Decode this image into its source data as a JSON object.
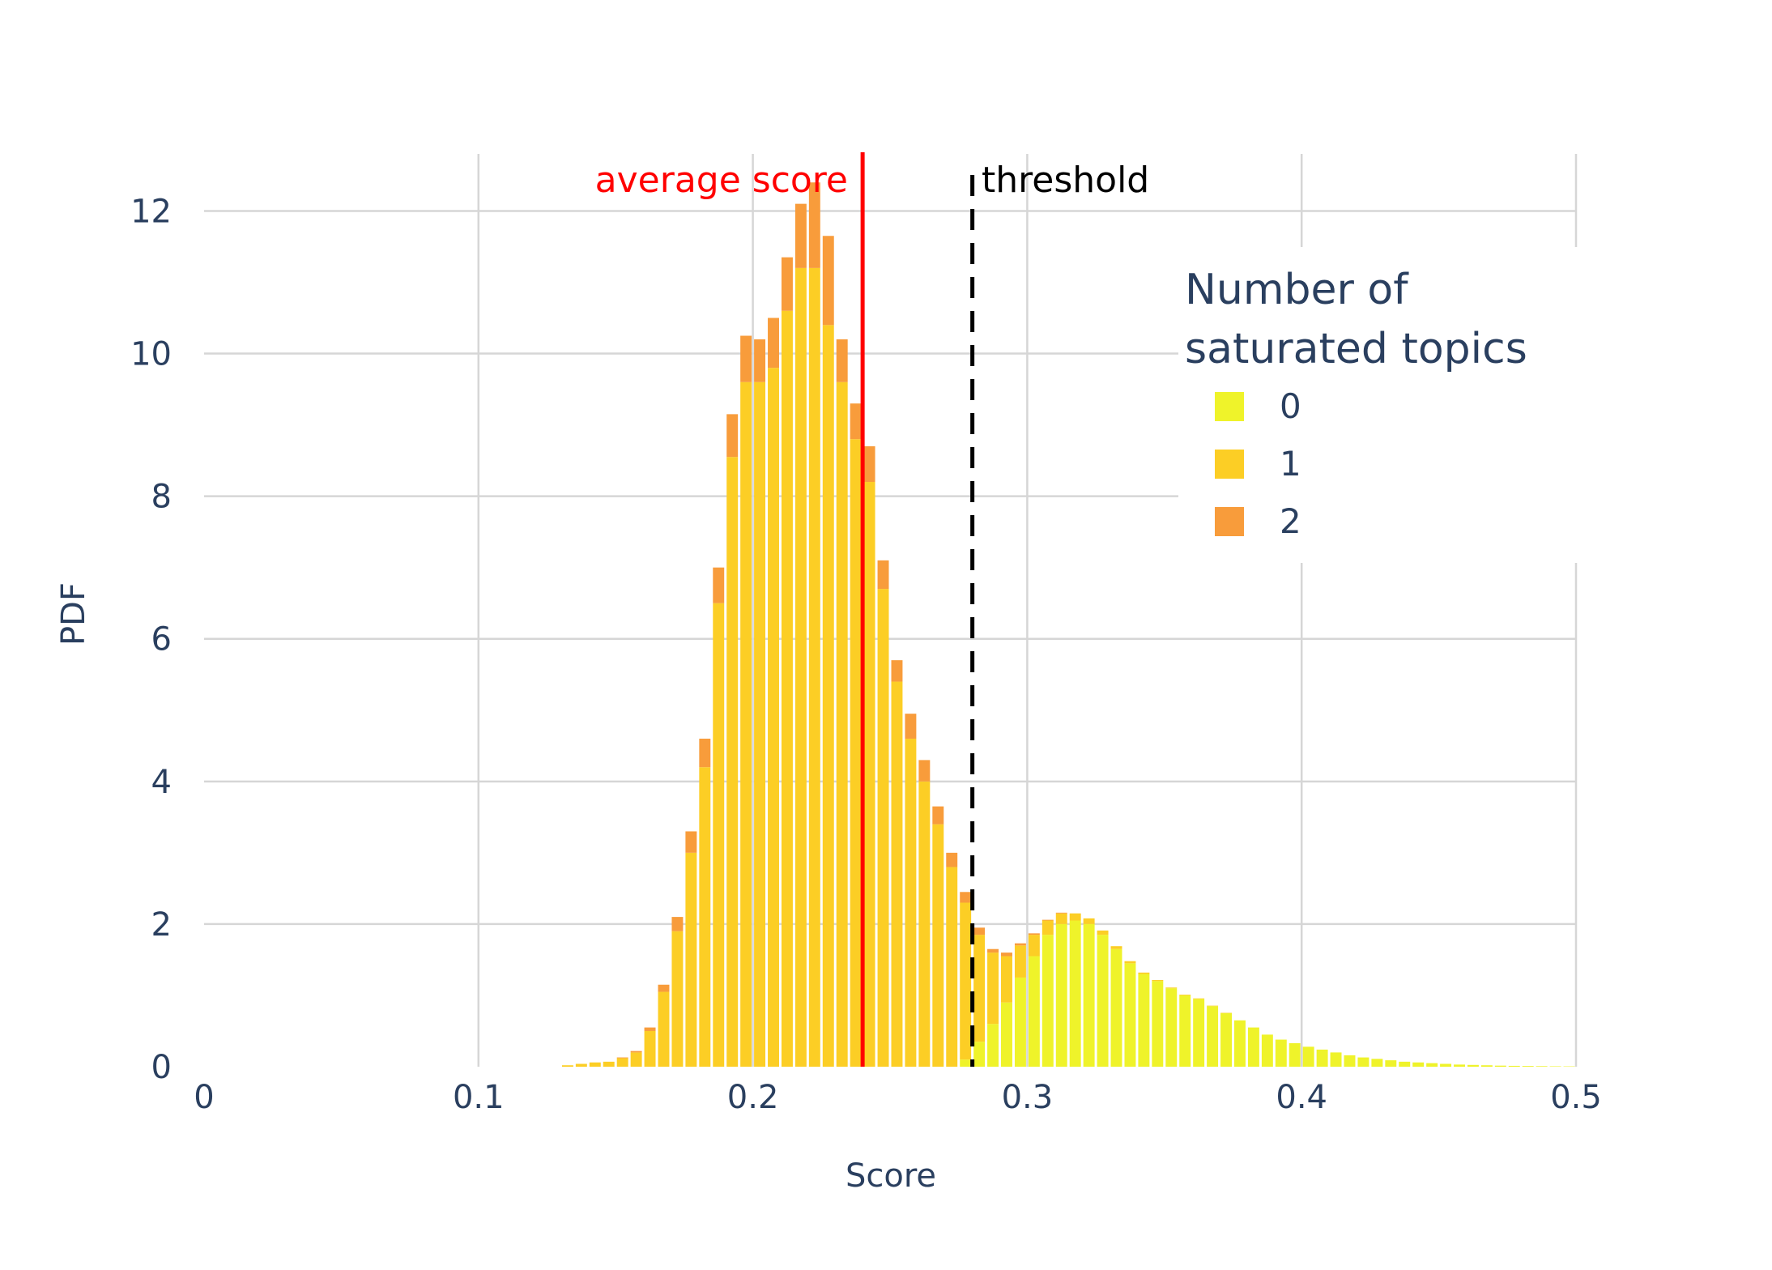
{
  "chart_data": {
    "type": "bar",
    "barmode": "stack",
    "xlabel": "Score",
    "ylabel": "PDF",
    "xlim": [
      0,
      0.5
    ],
    "ylim": [
      0,
      12.8
    ],
    "x_ticks": [
      "0",
      "0.1",
      "0.2",
      "0.3",
      "0.4",
      "0.5"
    ],
    "y_ticks": [
      "0",
      "2",
      "4",
      "6",
      "8",
      "10",
      "12"
    ],
    "grid": true,
    "bin_width": 0.005,
    "x": [
      0.1325,
      0.1375,
      0.1425,
      0.1475,
      0.1525,
      0.1575,
      0.1625,
      0.1675,
      0.1725,
      0.1775,
      0.1825,
      0.1875,
      0.1925,
      0.1975,
      0.2025,
      0.2075,
      0.2125,
      0.2175,
      0.2225,
      0.2275,
      0.2325,
      0.2375,
      0.2425,
      0.2475,
      0.2525,
      0.2575,
      0.2625,
      0.2675,
      0.2725,
      0.2775,
      0.2825,
      0.2875,
      0.2925,
      0.2975,
      0.3025,
      0.3075,
      0.3125,
      0.3175,
      0.3225,
      0.3275,
      0.3325,
      0.3375,
      0.3425,
      0.3475,
      0.3525,
      0.3575,
      0.3625,
      0.3675,
      0.3725,
      0.3775,
      0.3825,
      0.3875,
      0.3925,
      0.3975,
      0.4025,
      0.4075,
      0.4125,
      0.4175,
      0.4225,
      0.4275,
      0.4325,
      0.4375,
      0.4425,
      0.4475,
      0.4525,
      0.4575,
      0.4625,
      0.4675,
      0.4725,
      0.4775,
      0.4825,
      0.4875,
      0.4925,
      0.4975
    ],
    "series": [
      {
        "name": "0",
        "color": "#eff32a",
        "values": [
          0,
          0,
          0,
          0,
          0,
          0,
          0,
          0,
          0,
          0,
          0,
          0,
          0,
          0,
          0,
          0,
          0,
          0,
          0,
          0,
          0,
          0,
          0,
          0,
          0,
          0,
          0,
          0,
          0,
          0.1,
          0.35,
          0.6,
          0.9,
          1.25,
          1.55,
          1.85,
          2.0,
          2.05,
          2.0,
          1.85,
          1.65,
          1.45,
          1.3,
          1.2,
          1.1,
          1.0,
          0.95,
          0.85,
          0.75,
          0.65,
          0.55,
          0.45,
          0.38,
          0.33,
          0.28,
          0.24,
          0.2,
          0.16,
          0.13,
          0.11,
          0.09,
          0.07,
          0.06,
          0.05,
          0.04,
          0.03,
          0.025,
          0.02,
          0.015,
          0.012,
          0.01,
          0.008,
          0.006,
          0.005
        ]
      },
      {
        "name": "1",
        "color": "#fcce25",
        "values": [
          0.02,
          0.04,
          0.06,
          0.07,
          0.12,
          0.2,
          0.5,
          1.05,
          1.9,
          3.0,
          4.2,
          6.5,
          8.55,
          9.6,
          9.6,
          9.8,
          10.6,
          11.2,
          11.2,
          10.4,
          9.6,
          8.8,
          8.2,
          6.7,
          5.4,
          4.6,
          4.0,
          3.4,
          2.8,
          2.2,
          1.5,
          1.0,
          0.65,
          0.45,
          0.3,
          0.2,
          0.15,
          0.1,
          0.08,
          0.06,
          0.04,
          0.03,
          0.02,
          0.015,
          0.01,
          0.01,
          0.008,
          0.006,
          0.005,
          0,
          0,
          0,
          0,
          0,
          0,
          0,
          0,
          0,
          0,
          0,
          0,
          0,
          0,
          0,
          0,
          0,
          0,
          0,
          0,
          0,
          0,
          0,
          0,
          0
        ]
      },
      {
        "name": "2",
        "color": "#f89c3b",
        "values": [
          0,
          0,
          0,
          0,
          0.01,
          0.02,
          0.05,
          0.1,
          0.2,
          0.3,
          0.4,
          0.5,
          0.6,
          0.65,
          0.6,
          0.7,
          0.75,
          0.9,
          1.2,
          1.25,
          0.6,
          0.5,
          0.5,
          0.4,
          0.3,
          0.35,
          0.3,
          0.25,
          0.2,
          0.15,
          0.1,
          0.05,
          0.05,
          0.03,
          0.02,
          0.01,
          0.01,
          0,
          0,
          0,
          0,
          0,
          0,
          0,
          0,
          0,
          0,
          0,
          0,
          0,
          0,
          0,
          0,
          0,
          0,
          0,
          0,
          0,
          0,
          0,
          0,
          0,
          0,
          0,
          0,
          0,
          0,
          0,
          0,
          0,
          0,
          0,
          0,
          0
        ]
      }
    ],
    "legend": {
      "title_line1": "Number of",
      "title_line2": "saturated topics",
      "placement": "top-right"
    },
    "annotations": {
      "average": {
        "label": "average score",
        "x": 0.24,
        "color": "#ff0000"
      },
      "threshold": {
        "label": "threshold",
        "x": 0.28,
        "color": "#000000"
      }
    }
  }
}
